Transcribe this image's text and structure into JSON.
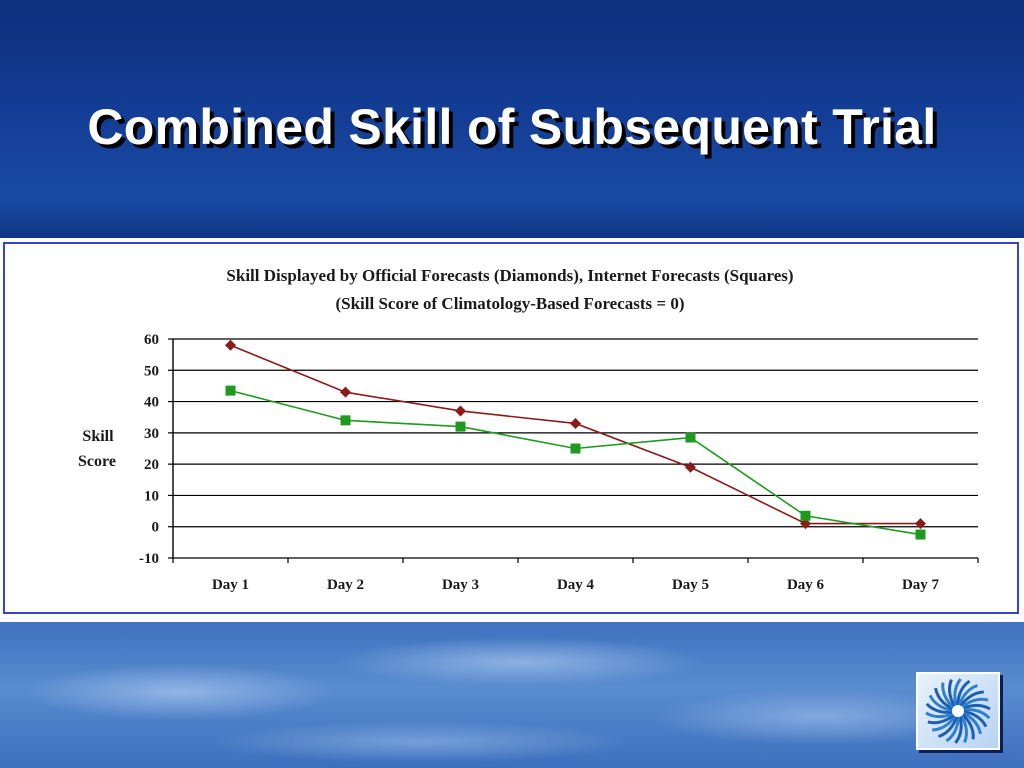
{
  "slide": {
    "title": "Combined Skill of Subsequent Trial",
    "logo_icon": "spiral-logo-icon"
  },
  "colors": {
    "official": "#8b1a1a",
    "internet": "#1f9a1f",
    "frame": "#3345c8"
  },
  "chart_data": {
    "type": "line",
    "title": "Skill Displayed by Official Forecasts (Diamonds), Internet Forecasts (Squares)",
    "subtitle": "(Skill Score of Climatology-Based Forecasts = 0)",
    "ylabel_line1": "Skill",
    "ylabel_line2": "Score",
    "categories": [
      "Day 1",
      "Day 2",
      "Day 3",
      "Day 4",
      "Day 5",
      "Day 6",
      "Day 7"
    ],
    "ylim": [
      -10,
      60
    ],
    "yticks": [
      60,
      50,
      40,
      30,
      20,
      10,
      0,
      -10
    ],
    "grid": true,
    "series": [
      {
        "key": "official",
        "marker": "diamond",
        "values": [
          58,
          43,
          37,
          33,
          19,
          1,
          1
        ]
      },
      {
        "key": "internet",
        "marker": "square",
        "values": [
          43.5,
          34,
          32,
          25,
          28.5,
          3.5,
          -2.5
        ]
      }
    ]
  }
}
